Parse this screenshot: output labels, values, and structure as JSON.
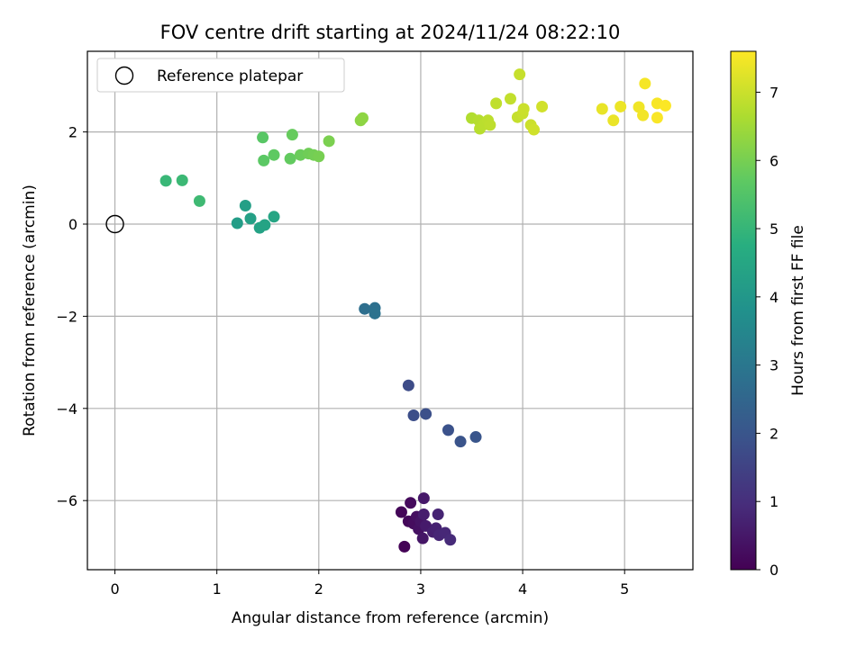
{
  "chart_data": {
    "type": "scatter",
    "title": "FOV centre drift starting at 2024/11/24 08:22:10",
    "xlabel": "Angular distance from reference (arcmin)",
    "ylabel": "Rotation from reference (arcmin)",
    "xlim": [
      -0.27,
      5.67
    ],
    "ylim": [
      -7.5,
      3.75
    ],
    "xticks": [
      0,
      1,
      2,
      3,
      4,
      5
    ],
    "yticks": [
      -6,
      -4,
      -2,
      0,
      2
    ],
    "xtick_labels": [
      "0",
      "1",
      "2",
      "3",
      "4",
      "5"
    ],
    "ytick_labels": [
      "−6",
      "−4",
      "−2",
      "0",
      "2"
    ],
    "grid": true,
    "legend": {
      "placement": "top-left",
      "entries": [
        "Reference platepar"
      ]
    },
    "reference_point": {
      "x": 0,
      "y": 0
    },
    "colorbar": {
      "label": "Hours from first FF file",
      "range": [
        0,
        7.6
      ],
      "ticks": [
        0,
        1,
        2,
        3,
        4,
        5,
        6,
        7
      ],
      "tick_labels": [
        "0",
        "1",
        "2",
        "3",
        "4",
        "5",
        "6",
        "7"
      ],
      "colormap": "viridis"
    },
    "points": [
      {
        "x": 2.84,
        "y": -7.0,
        "t": 0.05
      },
      {
        "x": 2.81,
        "y": -6.25,
        "t": 0.1
      },
      {
        "x": 2.88,
        "y": -6.45,
        "t": 0.15
      },
      {
        "x": 2.9,
        "y": -6.05,
        "t": 0.2
      },
      {
        "x": 2.93,
        "y": -6.5,
        "t": 0.25
      },
      {
        "x": 2.96,
        "y": -6.35,
        "t": 0.3
      },
      {
        "x": 2.98,
        "y": -6.62,
        "t": 0.35
      },
      {
        "x": 3.0,
        "y": -6.45,
        "t": 0.4
      },
      {
        "x": 3.02,
        "y": -6.82,
        "t": 0.45
      },
      {
        "x": 3.03,
        "y": -5.95,
        "t": 0.5
      },
      {
        "x": 3.05,
        "y": -6.55,
        "t": 0.55
      },
      {
        "x": 3.03,
        "y": -6.3,
        "t": 0.6
      },
      {
        "x": 3.12,
        "y": -6.68,
        "t": 0.65
      },
      {
        "x": 3.15,
        "y": -6.6,
        "t": 0.7
      },
      {
        "x": 3.17,
        "y": -6.3,
        "t": 0.75
      },
      {
        "x": 3.18,
        "y": -6.75,
        "t": 0.8
      },
      {
        "x": 3.24,
        "y": -6.7,
        "t": 0.85
      },
      {
        "x": 3.29,
        "y": -6.85,
        "t": 0.9
      },
      {
        "x": 2.88,
        "y": -3.5,
        "t": 1.75
      },
      {
        "x": 2.93,
        "y": -4.15,
        "t": 1.8
      },
      {
        "x": 3.05,
        "y": -4.12,
        "t": 1.85
      },
      {
        "x": 3.27,
        "y": -4.47,
        "t": 1.9
      },
      {
        "x": 3.39,
        "y": -4.72,
        "t": 1.95
      },
      {
        "x": 3.54,
        "y": -4.62,
        "t": 2.0
      },
      {
        "x": 2.45,
        "y": -1.84,
        "t": 2.75
      },
      {
        "x": 2.55,
        "y": -1.82,
        "t": 2.8
      },
      {
        "x": 2.55,
        "y": -1.94,
        "t": 2.85
      },
      {
        "x": 1.2,
        "y": 0.02,
        "t": 4.2
      },
      {
        "x": 1.28,
        "y": 0.4,
        "t": 4.25
      },
      {
        "x": 1.33,
        "y": 0.12,
        "t": 4.3
      },
      {
        "x": 1.42,
        "y": -0.08,
        "t": 4.35
      },
      {
        "x": 1.47,
        "y": -0.02,
        "t": 4.4
      },
      {
        "x": 1.56,
        "y": 0.16,
        "t": 4.45
      },
      {
        "x": 0.5,
        "y": 0.94,
        "t": 5.05
      },
      {
        "x": 0.66,
        "y": 0.95,
        "t": 5.1
      },
      {
        "x": 0.83,
        "y": 0.5,
        "t": 5.15
      },
      {
        "x": 1.45,
        "y": 1.88,
        "t": 5.6
      },
      {
        "x": 1.46,
        "y": 1.38,
        "t": 5.65
      },
      {
        "x": 1.56,
        "y": 1.5,
        "t": 5.7
      },
      {
        "x": 1.72,
        "y": 1.42,
        "t": 5.75
      },
      {
        "x": 1.74,
        "y": 1.94,
        "t": 5.8
      },
      {
        "x": 1.82,
        "y": 1.5,
        "t": 5.85
      },
      {
        "x": 1.9,
        "y": 1.53,
        "t": 5.9
      },
      {
        "x": 1.95,
        "y": 1.5,
        "t": 5.95
      },
      {
        "x": 2.0,
        "y": 1.47,
        "t": 6.0
      },
      {
        "x": 2.1,
        "y": 1.8,
        "t": 6.05
      },
      {
        "x": 2.41,
        "y": 2.25,
        "t": 6.25
      },
      {
        "x": 2.43,
        "y": 2.3,
        "t": 6.28
      },
      {
        "x": 3.5,
        "y": 2.3,
        "t": 6.7
      },
      {
        "x": 3.57,
        "y": 2.25,
        "t": 6.75
      },
      {
        "x": 3.58,
        "y": 2.07,
        "t": 6.78
      },
      {
        "x": 3.62,
        "y": 2.16,
        "t": 6.8
      },
      {
        "x": 3.66,
        "y": 2.25,
        "t": 6.83
      },
      {
        "x": 3.68,
        "y": 2.15,
        "t": 6.85
      },
      {
        "x": 3.74,
        "y": 2.62,
        "t": 6.88
      },
      {
        "x": 3.88,
        "y": 2.72,
        "t": 6.9
      },
      {
        "x": 3.95,
        "y": 2.32,
        "t": 6.93
      },
      {
        "x": 3.97,
        "y": 3.25,
        "t": 6.95
      },
      {
        "x": 4.0,
        "y": 2.4,
        "t": 6.97
      },
      {
        "x": 4.01,
        "y": 2.5,
        "t": 7.0
      },
      {
        "x": 4.08,
        "y": 2.15,
        "t": 7.02
      },
      {
        "x": 4.11,
        "y": 2.05,
        "t": 7.05
      },
      {
        "x": 4.19,
        "y": 2.55,
        "t": 7.08
      },
      {
        "x": 4.78,
        "y": 2.5,
        "t": 7.35
      },
      {
        "x": 4.89,
        "y": 2.25,
        "t": 7.38
      },
      {
        "x": 4.96,
        "y": 2.55,
        "t": 7.4
      },
      {
        "x": 5.14,
        "y": 2.54,
        "t": 7.45
      },
      {
        "x": 5.18,
        "y": 2.36,
        "t": 7.47
      },
      {
        "x": 5.2,
        "y": 3.05,
        "t": 7.5
      },
      {
        "x": 5.32,
        "y": 2.62,
        "t": 7.53
      },
      {
        "x": 5.32,
        "y": 2.31,
        "t": 7.55
      },
      {
        "x": 5.4,
        "y": 2.57,
        "t": 7.58
      }
    ]
  }
}
